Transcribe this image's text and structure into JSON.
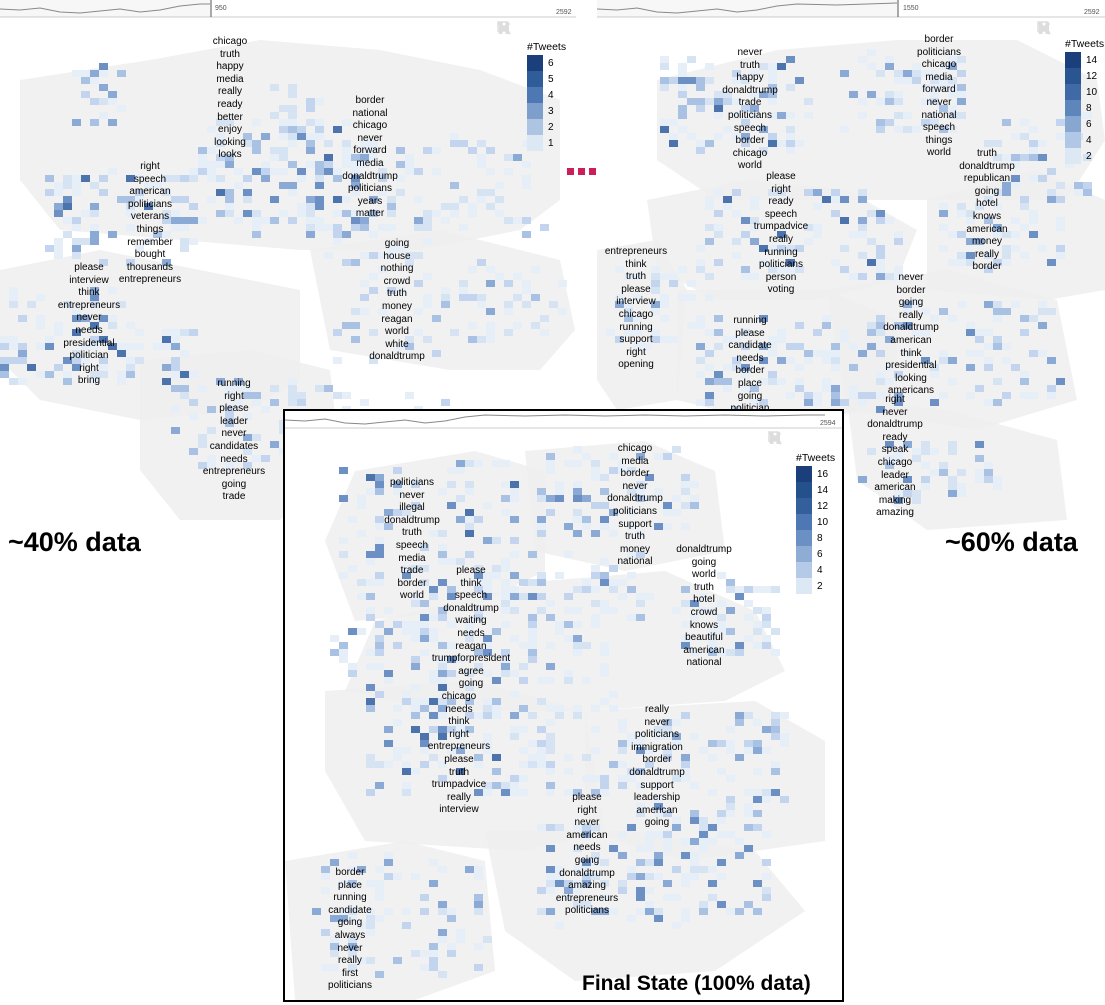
{
  "panels": [
    {
      "id": "left",
      "timeline_end": "950",
      "timeline_max": "2592",
      "legend_title": "#Tweets",
      "legend_levels": [
        "6",
        "5",
        "4",
        "3",
        "2",
        "1"
      ],
      "legend_colors": [
        "#1a3f7a",
        "#2f5d99",
        "#4d78b3",
        "#7e9fcc",
        "#aec4e3",
        "#dde8f5"
      ],
      "clusters": [
        {
          "words": [
            "chicago",
            "truth",
            "happy",
            "media",
            "really",
            "ready",
            "better",
            "enjoy",
            "looking",
            "looks"
          ]
        },
        {
          "words": [
            "border",
            "national",
            "chicago",
            "never",
            "forward",
            "media",
            "donaldtrump",
            "politicians",
            "years",
            "matter"
          ]
        },
        {
          "words": [
            "right",
            "speech",
            "american",
            "politicians",
            "veterans",
            "things",
            "remember",
            "bought",
            "thousands",
            "entrepreneurs"
          ]
        },
        {
          "words": [
            "going",
            "house",
            "nothing",
            "crowd",
            "truth",
            "money",
            "reagan",
            "world",
            "white",
            "donaldtrump"
          ]
        },
        {
          "words": [
            "please",
            "interview",
            "think",
            "entrepreneurs",
            "never",
            "needs",
            "presidential",
            "politician",
            "right",
            "bring"
          ]
        },
        {
          "words": [
            "running",
            "right",
            "please",
            "leader",
            "never",
            "candidates",
            "needs",
            "entrepreneurs",
            "going",
            "trade"
          ]
        }
      ],
      "caption": "~40% data"
    },
    {
      "id": "right",
      "timeline_end": "1550",
      "timeline_max": "2592",
      "legend_title": "#Tweets",
      "legend_levels": [
        "14",
        "12",
        "10",
        "8",
        "6",
        "4",
        "2"
      ],
      "legend_colors": [
        "#1a3f7a",
        "#2a5590",
        "#3f6aa6",
        "#5f86bb",
        "#87a7d0",
        "#b0c7e5",
        "#dde8f5"
      ],
      "clusters": [
        {
          "words": [
            "never",
            "truth",
            "happy",
            "donaldtrump",
            "trade",
            "politicians",
            "speech",
            "border",
            "chicago",
            "world"
          ]
        },
        {
          "words": [
            "border",
            "politicians",
            "chicago",
            "media",
            "forward",
            "never",
            "national",
            "speech",
            "things",
            "world"
          ]
        },
        {
          "words": [
            "please",
            "right",
            "ready",
            "speech",
            "trumpadvice",
            "really",
            "running",
            "politicians",
            "person",
            "voting"
          ]
        },
        {
          "words": [
            "truth",
            "donaldtrump",
            "republican",
            "going",
            "hotel",
            "knows",
            "american",
            "money",
            "really",
            "border"
          ]
        },
        {
          "words": [
            "entrepreneurs",
            "think",
            "truth",
            "please",
            "interview",
            "chicago",
            "running",
            "support",
            "right",
            "opening"
          ]
        },
        {
          "words": [
            "never",
            "border",
            "going",
            "really",
            "donaldtrump",
            "american",
            "think",
            "presidential",
            "looking",
            "americans"
          ]
        },
        {
          "words": [
            "running",
            "please",
            "candidate",
            "needs",
            "border",
            "place",
            "going",
            "politician"
          ]
        },
        {
          "words": [
            "right",
            "never",
            "donaldtrump",
            "ready",
            "speak",
            "chicago",
            "leader",
            "american",
            "making",
            "amazing"
          ]
        }
      ],
      "caption": "~60% data"
    },
    {
      "id": "final",
      "timeline_end": "",
      "timeline_max": "2594",
      "legend_title": "#Tweets",
      "legend_levels": [
        "16",
        "14",
        "12",
        "10",
        "8",
        "6",
        "4",
        "2"
      ],
      "legend_colors": [
        "#1a3f7a",
        "#24508b",
        "#33609c",
        "#4d78b3",
        "#6a90c4",
        "#8eacd4",
        "#b4cae6",
        "#dde8f5"
      ],
      "clusters": [
        {
          "words": [
            "politicians",
            "never",
            "illegal",
            "donaldtrump",
            "truth",
            "speech",
            "media",
            "trade",
            "border",
            "world"
          ]
        },
        {
          "words": [
            "chicago",
            "media",
            "border",
            "never",
            "donaldtrump",
            "politicians",
            "support",
            "truth",
            "money",
            "national"
          ]
        },
        {
          "words": [
            "please",
            "think",
            "speech",
            "donaldtrump",
            "waiting",
            "needs",
            "reagan",
            "trumpforpresident",
            "agree",
            "going"
          ]
        },
        {
          "words": [
            "donaldtrump",
            "going",
            "world",
            "truth",
            "hotel",
            "crowd",
            "knows",
            "beautiful",
            "american",
            "national"
          ]
        },
        {
          "words": [
            "chicago",
            "needs",
            "think",
            "right",
            "entrepreneurs",
            "please",
            "truth",
            "trumpadvice",
            "really",
            "interview"
          ]
        },
        {
          "words": [
            "really",
            "never",
            "politicians",
            "immigration",
            "border",
            "donaldtrump",
            "support",
            "leadership",
            "american",
            "going"
          ]
        },
        {
          "words": [
            "please",
            "right",
            "never",
            "american",
            "needs",
            "going",
            "donaldtrump",
            "amazing",
            "entrepreneurs",
            "politicians"
          ]
        },
        {
          "words": [
            "border",
            "place",
            "running",
            "candidate",
            "going",
            "always",
            "never",
            "really",
            "first",
            "politicians"
          ]
        }
      ],
      "caption": "Final State (100% data)"
    }
  ]
}
